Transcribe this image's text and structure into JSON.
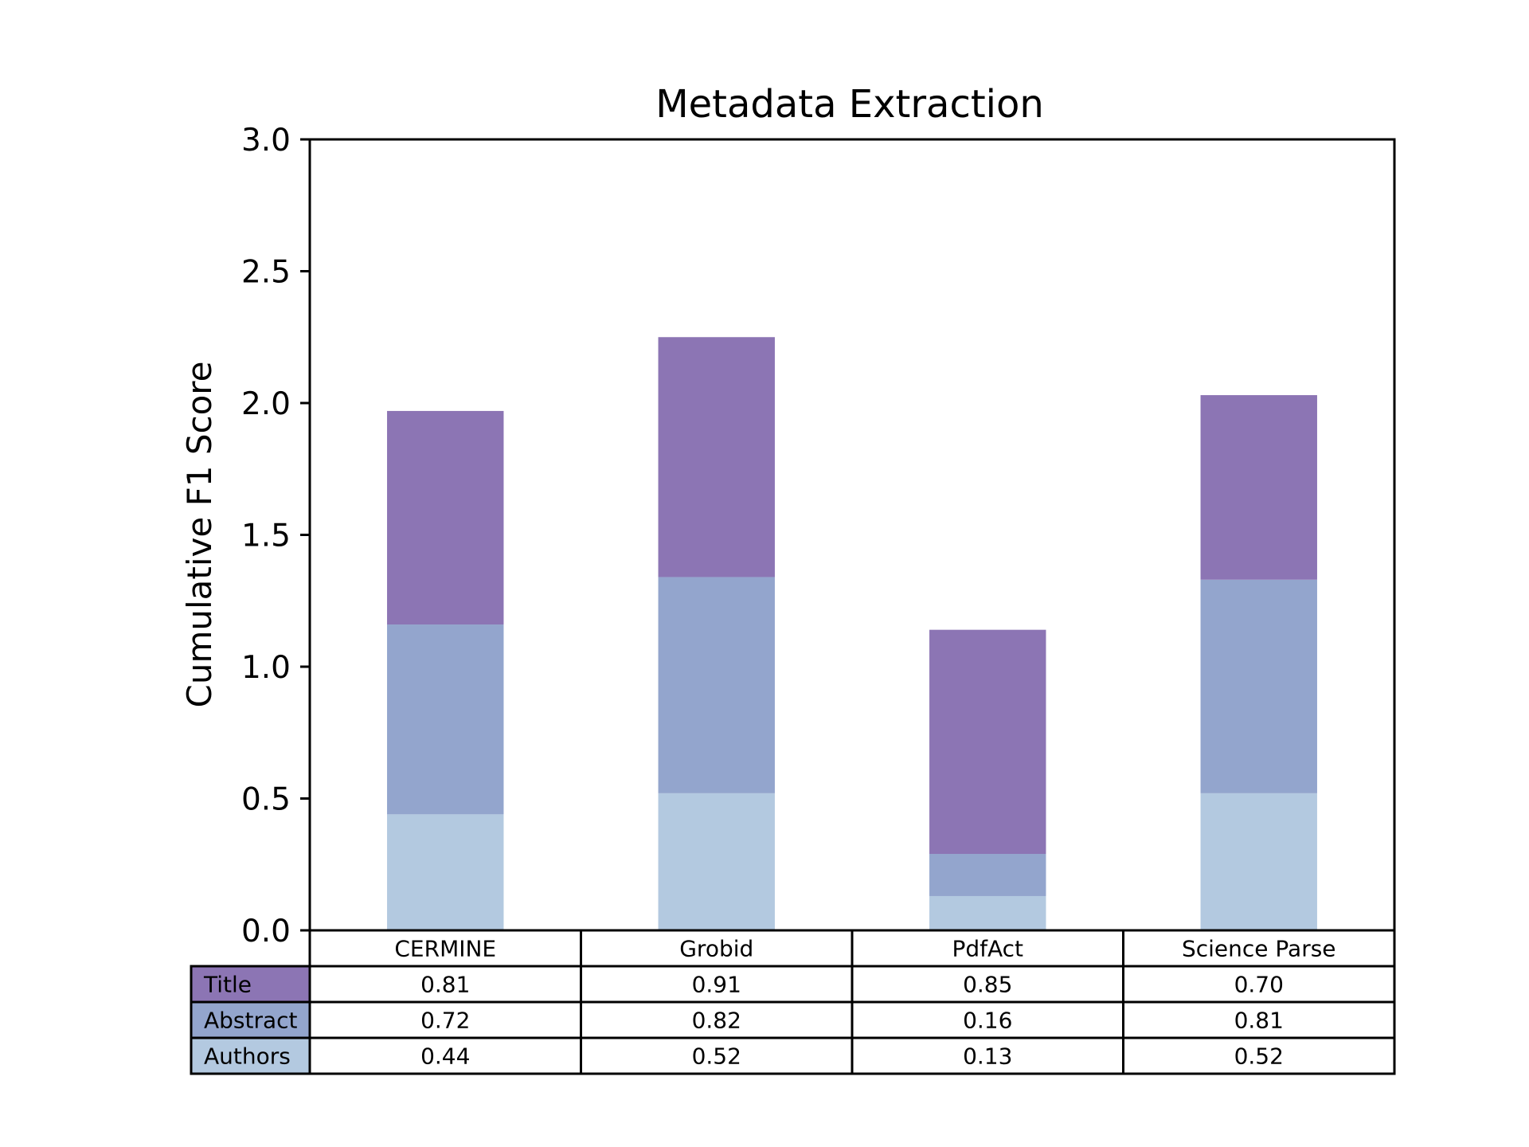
{
  "chart_data": {
    "type": "bar",
    "stacked": true,
    "title": "Metadata Extraction",
    "xlabel": "",
    "ylabel": "Cumulative F1 Score",
    "ylim": [
      0,
      3.0
    ],
    "yticks": [
      "0.0",
      "0.5",
      "1.0",
      "1.5",
      "2.0",
      "2.5",
      "3.0"
    ],
    "grid": false,
    "legend": "table-below",
    "categories": [
      "CERMINE",
      "Grobid",
      "PdfAct",
      "Science Parse"
    ],
    "series": [
      {
        "name": "Authors",
        "color": "#b3c9e0",
        "values": [
          0.44,
          0.52,
          0.13,
          0.52
        ],
        "labels": [
          "0.44",
          "0.52",
          "0.13",
          "0.52"
        ]
      },
      {
        "name": "Abstract",
        "color": "#93a5cd",
        "values": [
          0.72,
          0.82,
          0.16,
          0.81
        ],
        "labels": [
          "0.72",
          "0.82",
          "0.16",
          "0.81"
        ]
      },
      {
        "name": "Title",
        "color": "#8c75b4",
        "values": [
          0.81,
          0.91,
          0.85,
          0.7
        ],
        "labels": [
          "0.81",
          "0.91",
          "0.85",
          "0.70"
        ]
      }
    ],
    "table_row_order": [
      "Title",
      "Abstract",
      "Authors"
    ]
  }
}
